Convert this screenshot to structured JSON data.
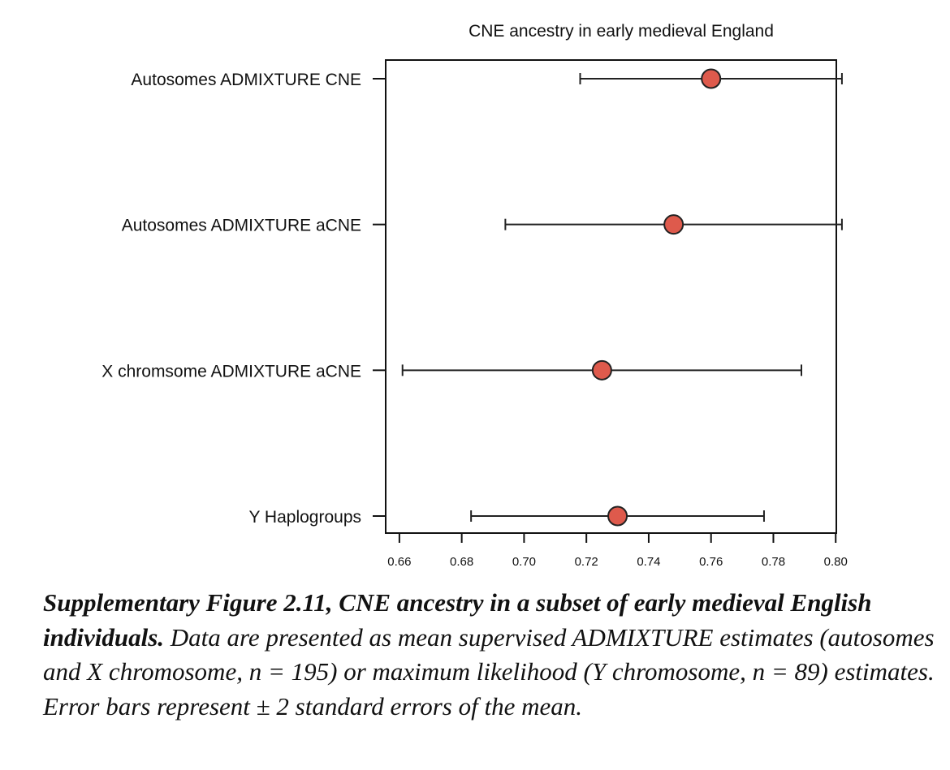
{
  "chart_data": {
    "type": "scatter",
    "title": "CNE ancestry in early medieval England",
    "xlabel": "",
    "ylabel": "",
    "xlim": [
      0.6556,
      0.8002
    ],
    "xticks": [
      "0.66",
      "0.68",
      "0.70",
      "0.72",
      "0.74",
      "0.76",
      "0.78",
      "0.80"
    ],
    "grid": false,
    "categories": [
      "Autosomes ADMIXTURE CNE",
      "Autosomes ADMIXTURE aCNE",
      "X chromsome ADMIXTURE aCNE",
      "Y Haplogroups"
    ],
    "series": [
      {
        "name": "mean ± 2 SE",
        "values": [
          0.76,
          0.748,
          0.725,
          0.73
        ],
        "lower": [
          0.718,
          0.694,
          0.661,
          0.683
        ],
        "upper": [
          0.802,
          0.802,
          0.789,
          0.777
        ]
      }
    ],
    "point_color": "#de5a4c"
  },
  "caption": {
    "bold": "Supplementary Figure 2.11, CNE ancestry in a subset of early medieval English individuals.",
    "text": " Data are presented as mean supervised ADMIXTURE estimates (autosomes and X chromosome, n = 195) or maximum likelihood (Y chromosome, n = 89) estimates. Error bars represent ± 2 standard errors of the mean."
  }
}
